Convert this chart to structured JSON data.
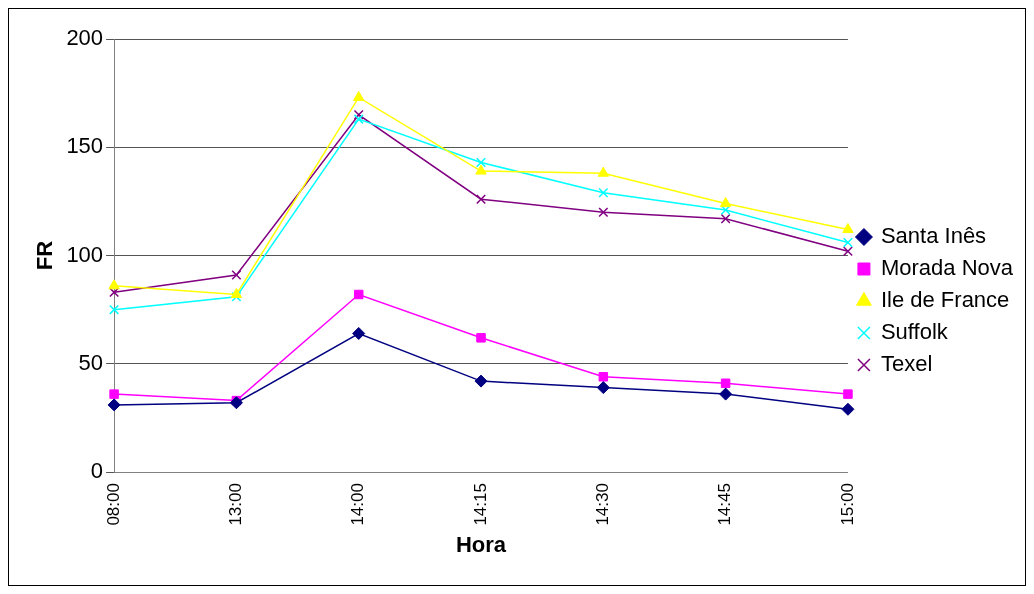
{
  "chart_data": {
    "type": "line",
    "xlabel": "Hora",
    "ylabel": "FR",
    "categories": [
      "08:00",
      "13:00",
      "14:00",
      "14:15",
      "14:30",
      "14:45",
      "15:00"
    ],
    "series": [
      {
        "name": "Santa Inês",
        "color": "#000080",
        "marker": "diamond",
        "values": [
          31,
          32,
          64,
          42,
          39,
          36,
          29
        ]
      },
      {
        "name": "Morada Nova",
        "color": "#ff00ff",
        "marker": "square",
        "values": [
          36,
          33,
          82,
          62,
          44,
          41,
          36
        ]
      },
      {
        "name": "Ile de France",
        "color": "#ffff00",
        "marker": "triangle",
        "values": [
          86,
          82,
          173,
          139,
          138,
          124,
          112
        ]
      },
      {
        "name": "Suffolk",
        "color": "#00ffff",
        "marker": "cross",
        "values": [
          75,
          81,
          163,
          143,
          129,
          121,
          106
        ]
      },
      {
        "name": "Texel",
        "color": "#800080",
        "marker": "cross",
        "values": [
          83,
          91,
          165,
          126,
          120,
          117,
          102
        ]
      }
    ],
    "ylim": [
      0,
      200
    ],
    "yticks": [
      0,
      50,
      100,
      150,
      200
    ],
    "grid": "y",
    "legend": "right"
  }
}
